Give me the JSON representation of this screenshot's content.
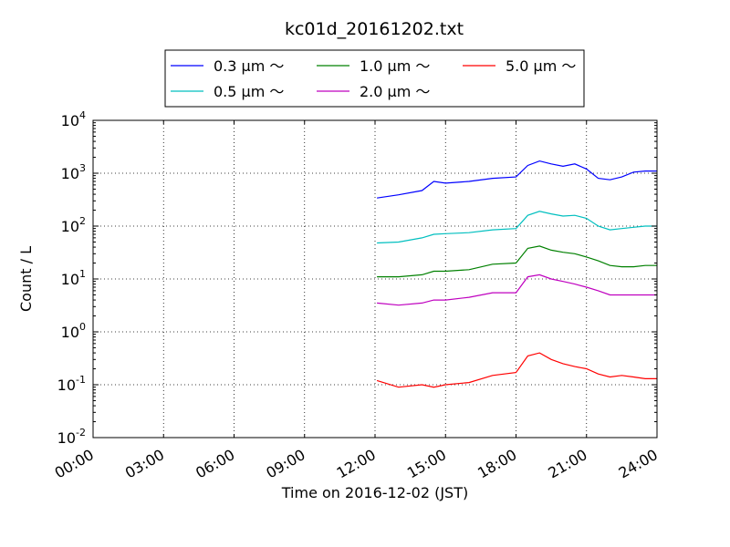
{
  "chart_data": {
    "type": "line",
    "title": "kc01d_20161202.txt",
    "xlabel": "Time on 2016-12-02 (JST)",
    "ylabel": "Count / L",
    "yscale": "log",
    "ylim": [
      0.01,
      10000
    ],
    "xlim": [
      "00:00",
      "24:00"
    ],
    "grid": true,
    "legend_position": "top",
    "xticks": [
      "00:00",
      "03:00",
      "06:00",
      "09:00",
      "12:00",
      "15:00",
      "18:00",
      "21:00",
      "24:00"
    ],
    "yticks": [
      {
        "base": "10",
        "exp": "-2",
        "value": 0.01
      },
      {
        "base": "10",
        "exp": "-1",
        "value": 0.1
      },
      {
        "base": "10",
        "exp": "0",
        "value": 1
      },
      {
        "base": "10",
        "exp": "1",
        "value": 10
      },
      {
        "base": "10",
        "exp": "2",
        "value": 100
      },
      {
        "base": "10",
        "exp": "3",
        "value": 1000
      },
      {
        "base": "10",
        "exp": "4",
        "value": 10000
      }
    ],
    "x": [
      "12:05",
      "13:00",
      "14:00",
      "14:30",
      "15:00",
      "16:00",
      "17:00",
      "18:00",
      "18:30",
      "19:00",
      "19:30",
      "20:00",
      "20:30",
      "21:00",
      "21:30",
      "22:00",
      "22:30",
      "23:00",
      "23:30",
      "24:00"
    ],
    "series": [
      {
        "name": "0.3 μm ～",
        "color": "#0000ff",
        "values": [
          340,
          390,
          470,
          700,
          650,
          700,
          800,
          850,
          1400,
          1700,
          1500,
          1350,
          1500,
          1200,
          800,
          750,
          850,
          1050,
          1100,
          1100
        ]
      },
      {
        "name": "0.5 μm ～",
        "color": "#00bfbf",
        "values": [
          48,
          50,
          60,
          70,
          72,
          75,
          85,
          90,
          160,
          190,
          170,
          155,
          160,
          140,
          100,
          85,
          90,
          95,
          100,
          100
        ]
      },
      {
        "name": "1.0 μm ～",
        "color": "#008000",
        "values": [
          11,
          11,
          12,
          14,
          14,
          15,
          19,
          20,
          38,
          42,
          35,
          32,
          30,
          26,
          22,
          18,
          17,
          17,
          18,
          18
        ]
      },
      {
        "name": "2.0 μm ～",
        "color": "#bf00bf",
        "values": [
          3.5,
          3.2,
          3.5,
          4.0,
          4.0,
          4.5,
          5.5,
          5.5,
          11,
          12,
          10,
          9,
          8,
          7,
          6,
          5,
          5,
          5,
          5,
          5
        ]
      },
      {
        "name": "5.0 μm ～",
        "color": "#ff0000",
        "values": [
          0.12,
          0.09,
          0.1,
          0.09,
          0.1,
          0.11,
          0.15,
          0.17,
          0.35,
          0.4,
          0.3,
          0.25,
          0.22,
          0.2,
          0.16,
          0.14,
          0.15,
          0.14,
          0.13,
          0.13
        ]
      }
    ]
  }
}
